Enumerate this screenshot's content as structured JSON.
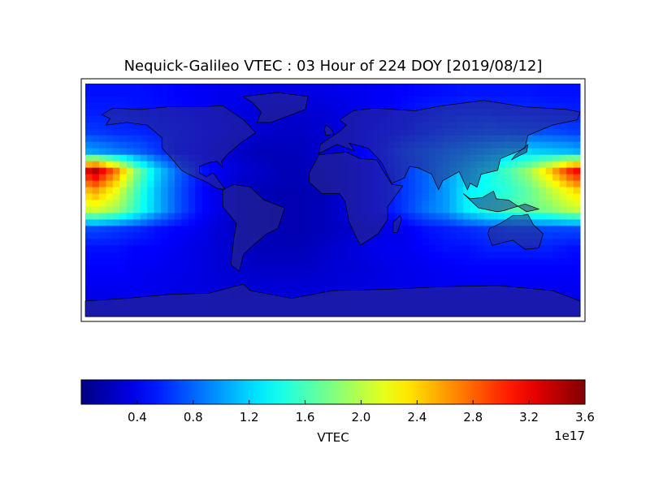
{
  "chart_data": {
    "type": "heatmap",
    "title": "Nequick-Galileo VTEC : 03 Hour of 224 DOY [2019/08/12]",
    "colorbar": {
      "label": "VTEC",
      "range": [
        0,
        3.6
      ],
      "ticks": [
        "0.4",
        "0.8",
        "1.2",
        "1.6",
        "2.0",
        "2.4",
        "2.8",
        "3.2",
        "3.6"
      ],
      "tick_values": [
        0.4,
        0.8,
        1.2,
        1.6,
        2.0,
        2.4,
        2.8,
        3.2,
        3.6
      ],
      "offset_text": "1e17",
      "colormap": "jet",
      "orientation": "horizontal"
    },
    "lon_range": [
      -180,
      180
    ],
    "lat_range": [
      -90,
      90
    ],
    "lon": [
      -172.5,
      -157.5,
      -142.5,
      -127.5,
      -112.5,
      -97.5,
      -82.5,
      -67.5,
      -52.5,
      -37.5,
      -22.5,
      -7.5,
      7.5,
      22.5,
      37.5,
      52.5,
      67.5,
      82.5,
      97.5,
      112.5,
      127.5,
      142.5,
      157.5,
      172.5
    ],
    "lat": [
      82.5,
      67.5,
      52.5,
      37.5,
      22.5,
      7.5,
      -7.5,
      -22.5,
      -37.5,
      -52.5,
      -67.5,
      -82.5
    ],
    "values_unit": "1e17",
    "values": [
      [
        0.5,
        0.5,
        0.5,
        0.48,
        0.45,
        0.42,
        0.4,
        0.38,
        0.36,
        0.35,
        0.35,
        0.36,
        0.38,
        0.4,
        0.42,
        0.45,
        0.48,
        0.5,
        0.52,
        0.52,
        0.52,
        0.52,
        0.5,
        0.5
      ],
      [
        0.55,
        0.55,
        0.52,
        0.5,
        0.48,
        0.45,
        0.4,
        0.35,
        0.3,
        0.28,
        0.28,
        0.3,
        0.35,
        0.4,
        0.45,
        0.5,
        0.55,
        0.6,
        0.62,
        0.62,
        0.6,
        0.6,
        0.58,
        0.56
      ],
      [
        0.65,
        0.6,
        0.58,
        0.55,
        0.52,
        0.48,
        0.42,
        0.35,
        0.28,
        0.25,
        0.25,
        0.28,
        0.35,
        0.45,
        0.5,
        0.55,
        0.62,
        0.7,
        0.75,
        0.78,
        0.78,
        0.75,
        0.72,
        0.68
      ],
      [
        1.0,
        0.9,
        0.8,
        0.65,
        0.5,
        0.45,
        0.35,
        0.25,
        0.2,
        0.2,
        0.22,
        0.28,
        0.35,
        0.45,
        0.55,
        0.7,
        0.8,
        0.9,
        1.0,
        1.1,
        1.2,
        1.2,
        1.15,
        1.1
      ],
      [
        3.4,
        2.7,
        1.8,
        1.2,
        0.8,
        0.55,
        0.4,
        0.3,
        0.25,
        0.2,
        0.2,
        0.25,
        0.3,
        0.4,
        0.5,
        0.65,
        0.8,
        1.0,
        1.2,
        1.4,
        1.6,
        1.9,
        2.4,
        3.0
      ],
      [
        2.6,
        2.2,
        1.6,
        1.1,
        0.75,
        0.5,
        0.35,
        0.25,
        0.2,
        0.18,
        0.18,
        0.2,
        0.3,
        0.4,
        0.5,
        0.65,
        0.8,
        1.0,
        1.3,
        1.4,
        1.5,
        1.7,
        2.0,
        2.3
      ],
      [
        2.1,
        1.9,
        1.5,
        1.1,
        0.75,
        0.5,
        0.35,
        0.25,
        0.2,
        0.18,
        0.18,
        0.2,
        0.3,
        0.4,
        0.5,
        0.65,
        0.85,
        1.0,
        1.3,
        1.5,
        1.6,
        1.7,
        1.8,
        2.0
      ],
      [
        0.7,
        0.65,
        0.6,
        0.5,
        0.45,
        0.4,
        0.3,
        0.25,
        0.2,
        0.18,
        0.18,
        0.2,
        0.25,
        0.3,
        0.35,
        0.4,
        0.5,
        0.55,
        0.6,
        0.65,
        0.7,
        0.7,
        0.7,
        0.7
      ],
      [
        0.5,
        0.5,
        0.45,
        0.45,
        0.4,
        0.35,
        0.3,
        0.25,
        0.2,
        0.2,
        0.2,
        0.25,
        0.3,
        0.35,
        0.4,
        0.4,
        0.45,
        0.5,
        0.5,
        0.55,
        0.55,
        0.55,
        0.55,
        0.5
      ],
      [
        0.45,
        0.45,
        0.42,
        0.4,
        0.38,
        0.35,
        0.3,
        0.28,
        0.25,
        0.25,
        0.25,
        0.28,
        0.3,
        0.32,
        0.35,
        0.38,
        0.4,
        0.42,
        0.45,
        0.45,
        0.45,
        0.45,
        0.45,
        0.45
      ],
      [
        0.4,
        0.4,
        0.4,
        0.38,
        0.36,
        0.34,
        0.32,
        0.3,
        0.3,
        0.3,
        0.3,
        0.3,
        0.32,
        0.34,
        0.36,
        0.38,
        0.4,
        0.4,
        0.4,
        0.4,
        0.4,
        0.4,
        0.4,
        0.4
      ],
      [
        0.35,
        0.35,
        0.35,
        0.35,
        0.35,
        0.35,
        0.35,
        0.35,
        0.35,
        0.35,
        0.35,
        0.35,
        0.35,
        0.35,
        0.35,
        0.35,
        0.35,
        0.35,
        0.35,
        0.35,
        0.35,
        0.35,
        0.35,
        0.35
      ]
    ],
    "grid": false
  }
}
